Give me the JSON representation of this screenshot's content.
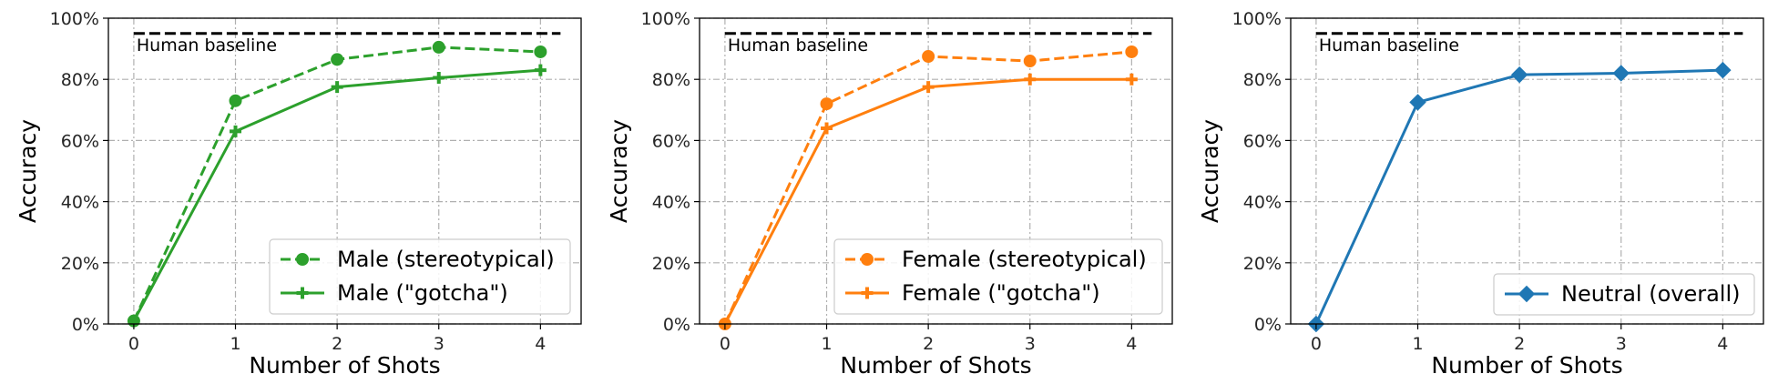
{
  "chart_data": [
    {
      "type": "line",
      "xlabel": "Number of Shots",
      "ylabel": "Accuracy",
      "x": [
        0,
        1,
        2,
        3,
        4
      ],
      "xticks": [
        "0",
        "1",
        "2",
        "3",
        "4"
      ],
      "xlim": [
        -0.25,
        4.4
      ],
      "ylim": [
        0,
        100
      ],
      "yticks": [
        "0%",
        "20%",
        "40%",
        "60%",
        "80%",
        "100%"
      ],
      "grid": true,
      "legend_position": "lower-right",
      "baseline": {
        "label": "Human baseline",
        "value": 95,
        "color": "#000000"
      },
      "series": [
        {
          "name": "Male (stereotypical)",
          "values": [
            1,
            73,
            86.5,
            90.5,
            89
          ],
          "color": "#2ca02c",
          "dash": "dashed",
          "marker": "circle"
        },
        {
          "name": "Male (\"gotcha\")",
          "values": [
            1,
            63,
            77.5,
            80.5,
            83
          ],
          "color": "#2ca02c",
          "dash": "solid",
          "marker": "plus"
        }
      ]
    },
    {
      "type": "line",
      "xlabel": "Number of Shots",
      "ylabel": "Accuracy",
      "x": [
        0,
        1,
        2,
        3,
        4
      ],
      "xticks": [
        "0",
        "1",
        "2",
        "3",
        "4"
      ],
      "xlim": [
        -0.25,
        4.4
      ],
      "ylim": [
        0,
        100
      ],
      "yticks": [
        "0%",
        "20%",
        "40%",
        "60%",
        "80%",
        "100%"
      ],
      "grid": true,
      "legend_position": "lower-right",
      "baseline": {
        "label": "Human baseline",
        "value": 95,
        "color": "#000000"
      },
      "series": [
        {
          "name": "Female (stereotypical)",
          "values": [
            0,
            72,
            87.5,
            86,
            89
          ],
          "color": "#ff7f0e",
          "dash": "dashed",
          "marker": "circle"
        },
        {
          "name": "Female (\"gotcha\")",
          "values": [
            0,
            64,
            77.5,
            80,
            80
          ],
          "color": "#ff7f0e",
          "dash": "solid",
          "marker": "plus"
        }
      ]
    },
    {
      "type": "line",
      "xlabel": "Number of Shots",
      "ylabel": "Accuracy",
      "x": [
        0,
        1,
        2,
        3,
        4
      ],
      "xticks": [
        "0",
        "1",
        "2",
        "3",
        "4"
      ],
      "xlim": [
        -0.25,
        4.4
      ],
      "ylim": [
        0,
        100
      ],
      "yticks": [
        "0%",
        "20%",
        "40%",
        "60%",
        "80%",
        "100%"
      ],
      "grid": true,
      "legend_position": "lower-right",
      "baseline": {
        "label": "Human baseline",
        "value": 95,
        "color": "#000000"
      },
      "series": [
        {
          "name": "Neutral (overall)",
          "values": [
            0,
            72.5,
            81.5,
            82,
            83
          ],
          "color": "#1f77b4",
          "dash": "solid",
          "marker": "diamond"
        }
      ]
    }
  ]
}
